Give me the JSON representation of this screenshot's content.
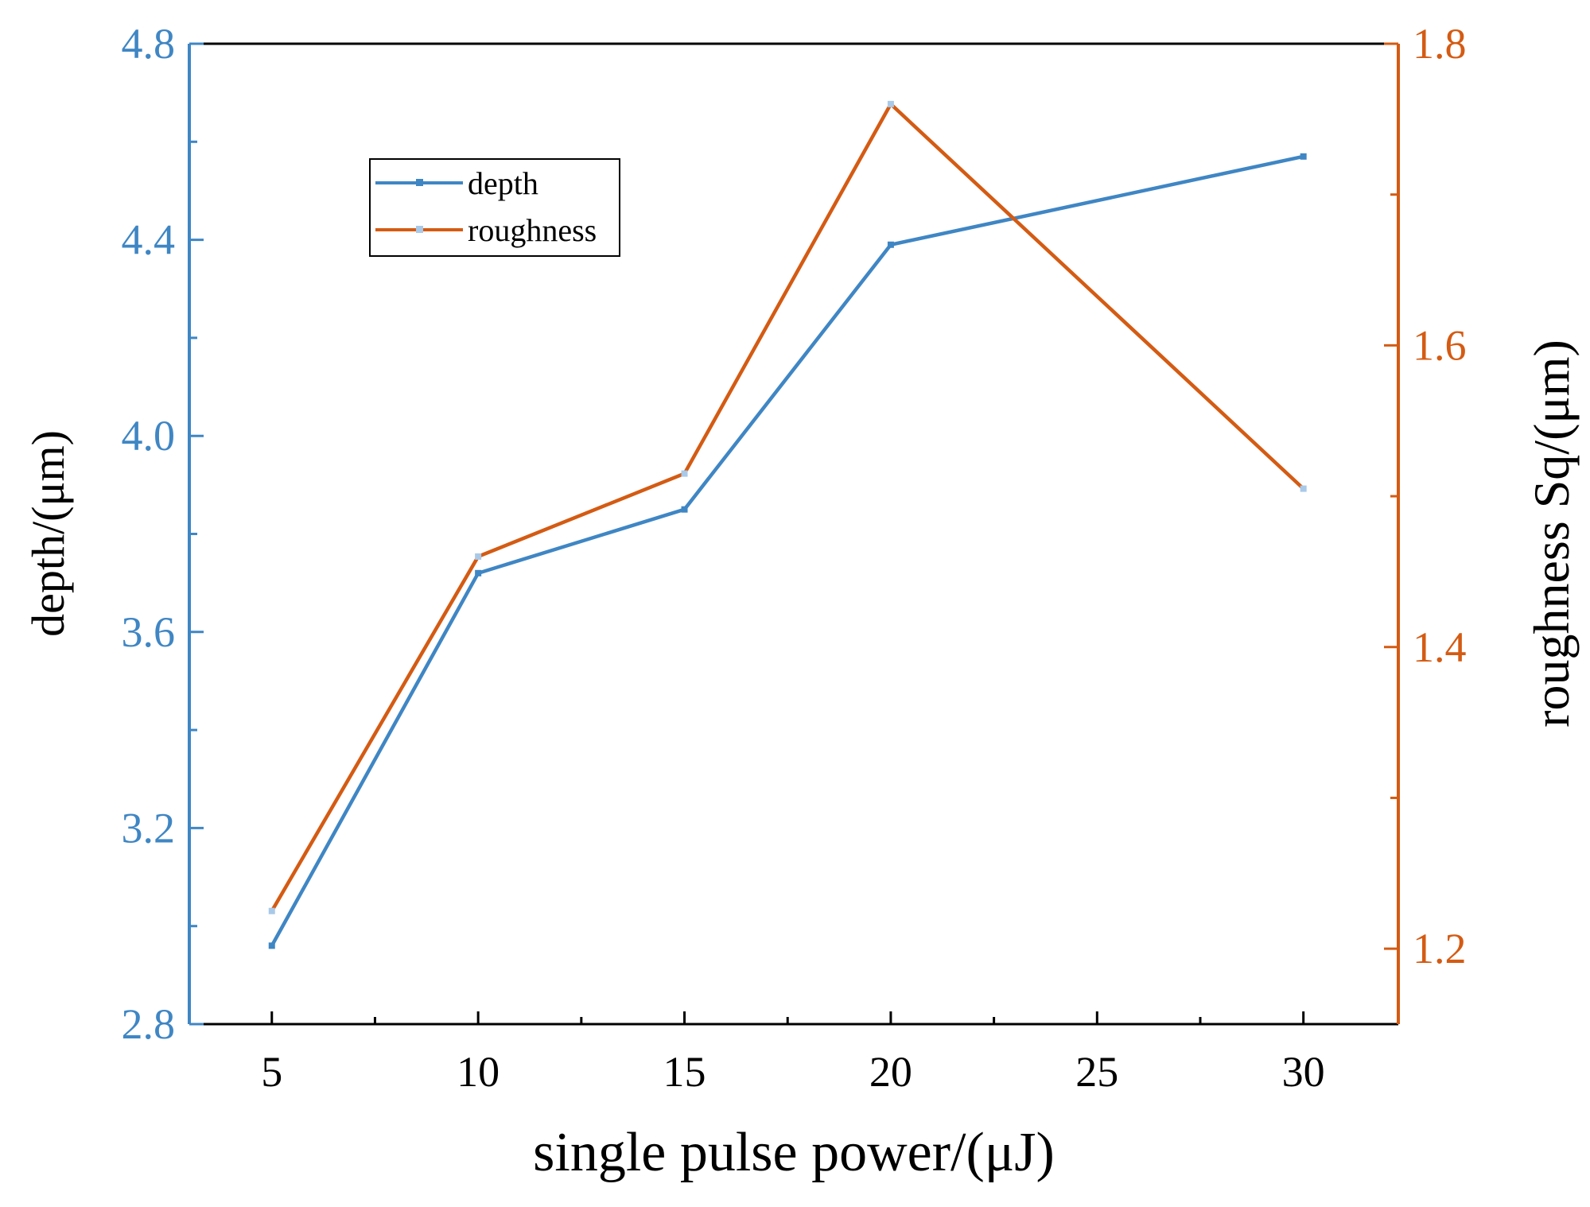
{
  "chart_data": {
    "type": "line",
    "x": [
      5,
      10,
      15,
      20,
      30
    ],
    "xticks": [
      "5",
      "10",
      "15",
      "20",
      "25",
      "30"
    ],
    "xlim": [
      3,
      32.3
    ],
    "xlabel": "single pulse power/(μJ)",
    "y_left": {
      "label": "depth/(μm)",
      "ylim": [
        2.8,
        4.8
      ],
      "ticks": [
        "2.8",
        "3.2",
        "3.6",
        "4.0",
        "4.4",
        "4.8"
      ],
      "color": "#3F86C4"
    },
    "y_right": {
      "label": "roughness Sq/(μm)",
      "ylim": [
        1.15,
        1.8
      ],
      "ticks": [
        "1.2",
        "1.4",
        "1.6",
        "1.8"
      ],
      "color": "#D45B13"
    },
    "series": [
      {
        "name": "depth",
        "axis": "left",
        "color": "#3F86C4",
        "values": [
          2.96,
          3.72,
          3.85,
          4.39,
          4.57
        ]
      },
      {
        "name": "roughness",
        "axis": "right",
        "color": "#D45B13",
        "values": [
          1.225,
          1.46,
          1.515,
          1.76,
          1.505
        ]
      }
    ],
    "legend": {
      "position": "top-left",
      "entries": [
        "depth",
        "roughness"
      ]
    }
  }
}
